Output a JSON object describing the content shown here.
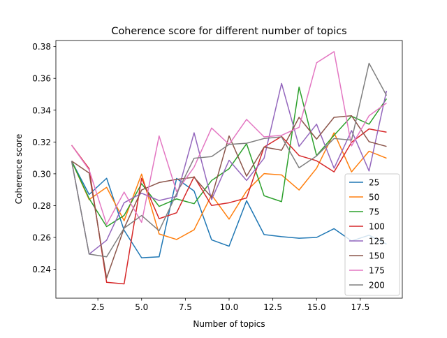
{
  "chart_data": {
    "type": "line",
    "title": "Coherence score for different number of topics",
    "xlabel": "Number of topics",
    "ylabel": "Coherence score",
    "xlim": [
      0.1,
      19.9
    ],
    "ylim": [
      0.2218,
      0.3838
    ],
    "xticks": [
      2.5,
      5.0,
      7.5,
      10.0,
      12.5,
      15.0,
      17.5
    ],
    "xtick_labels": [
      "2.5",
      "5.0",
      "7.5",
      "10.0",
      "12.5",
      "15.0",
      "17.5"
    ],
    "yticks": [
      0.24,
      0.26,
      0.28,
      0.3,
      0.32,
      0.34,
      0.36,
      0.38
    ],
    "ytick_labels": [
      "0.24",
      "0.26",
      "0.28",
      "0.30",
      "0.32",
      "0.34",
      "0.36",
      "0.38"
    ],
    "grid": false,
    "legend_position": "lower-right",
    "x": [
      1,
      2,
      3,
      4,
      5,
      6,
      7,
      8,
      9,
      10,
      11,
      12,
      13,
      14,
      15,
      16,
      17,
      18,
      19
    ],
    "series": [
      {
        "name": "25",
        "color": "#1f77b4",
        "values": [
          0.308,
          0.287,
          0.2972,
          0.2645,
          0.2472,
          0.2478,
          0.2971,
          0.2892,
          0.2585,
          0.2545,
          0.2831,
          0.2618,
          0.2605,
          0.2595,
          0.26,
          0.2655,
          0.2578,
          0.2614,
          0.2558
        ]
      },
      {
        "name": "50",
        "color": "#ff7f0e",
        "values": [
          0.308,
          0.2838,
          0.2915,
          0.2705,
          0.2998,
          0.2622,
          0.2587,
          0.2648,
          0.2867,
          0.2715,
          0.2892,
          0.3001,
          0.2993,
          0.2898,
          0.3035,
          0.3258,
          0.3012,
          0.3142,
          0.3098
        ]
      },
      {
        "name": "75",
        "color": "#2ca02c",
        "values": [
          0.308,
          0.2845,
          0.2668,
          0.2738,
          0.2938,
          0.2795,
          0.2842,
          0.2812,
          0.2958,
          0.3032,
          0.3189,
          0.2862,
          0.2825,
          0.3545,
          0.3115,
          0.3242,
          0.3362,
          0.3312,
          0.3472
        ]
      },
      {
        "name": "100",
        "color": "#d62728",
        "values": [
          0.318,
          0.3032,
          0.2318,
          0.2308,
          0.2972,
          0.2718,
          0.2755,
          0.2982,
          0.2801,
          0.2818,
          0.2848,
          0.3168,
          0.3235,
          0.3115,
          0.3082,
          0.3012,
          0.3198,
          0.3282,
          0.3262
        ]
      },
      {
        "name": "125",
        "color": "#9467bd",
        "values": [
          0.308,
          0.2495,
          0.2582,
          0.2818,
          0.2878,
          0.2832,
          0.2858,
          0.3258,
          0.2838,
          0.3085,
          0.2958,
          0.3098,
          0.3568,
          0.3172,
          0.3312,
          0.3035,
          0.3272,
          0.3018,
          0.3522
        ]
      },
      {
        "name": "150",
        "color": "#8c564b",
        "values": [
          0.308,
          0.3005,
          0.2345,
          0.2658,
          0.2898,
          0.2945,
          0.2965,
          0.2978,
          0.2852,
          0.3238,
          0.2985,
          0.3168,
          0.3148,
          0.3355,
          0.3218,
          0.3355,
          0.3365,
          0.3202,
          0.3172
        ]
      },
      {
        "name": "175",
        "color": "#e377c2",
        "values": [
          0.318,
          0.3025,
          0.2682,
          0.2885,
          0.2695,
          0.3238,
          0.2888,
          0.3042,
          0.3288,
          0.3185,
          0.3342,
          0.3232,
          0.3242,
          0.3292,
          0.3698,
          0.3768,
          0.3175,
          0.3365,
          0.3445
        ]
      },
      {
        "name": "200",
        "color": "#7f7f7f",
        "values": [
          0.308,
          0.2495,
          0.2478,
          0.2658,
          0.2738,
          0.2642,
          0.2875,
          0.3098,
          0.3108,
          0.3185,
          0.3192,
          0.3222,
          0.3232,
          0.3038,
          0.3112,
          0.3222,
          0.3212,
          0.3695,
          0.3492
        ]
      }
    ]
  }
}
